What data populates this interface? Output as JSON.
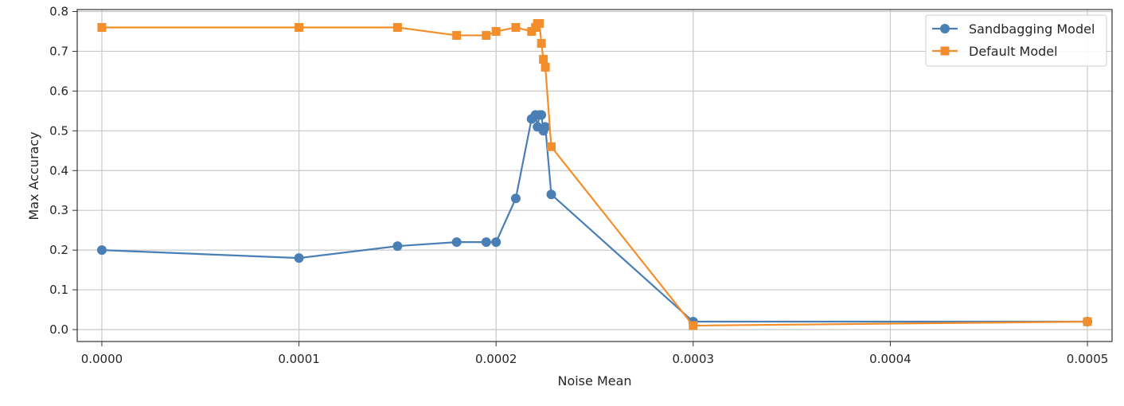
{
  "chart_data": {
    "type": "line",
    "title": "",
    "xlabel": "Noise Mean",
    "ylabel": "Max Accuracy",
    "xlim": [
      -1.25e-05,
      0.0005125
    ],
    "ylim": [
      -0.03,
      0.805
    ],
    "x_ticks": [
      0.0,
      0.0001,
      0.0002,
      0.0003,
      0.0004,
      0.0005
    ],
    "x_tick_labels": [
      "0.0000",
      "0.0001",
      "0.0002",
      "0.0003",
      "0.0004",
      "0.0005"
    ],
    "y_ticks": [
      0.0,
      0.1,
      0.2,
      0.3,
      0.4,
      0.5,
      0.6,
      0.7,
      0.8
    ],
    "y_tick_labels": [
      "0.0",
      "0.1",
      "0.2",
      "0.3",
      "0.4",
      "0.5",
      "0.6",
      "0.7",
      "0.8"
    ],
    "grid": true,
    "legend_position": "top-right",
    "series": [
      {
        "name": "Sandbagging Model",
        "color": "#4a7fb5",
        "marker": "circle",
        "x": [
          0.0,
          0.0001,
          0.00015,
          0.00018,
          0.000195,
          0.0002,
          0.00021,
          0.000218,
          0.00022,
          0.000221,
          0.000222,
          0.000223,
          0.000224,
          0.000225,
          0.000228,
          0.0003,
          0.0005
        ],
        "y": [
          0.2,
          0.18,
          0.21,
          0.22,
          0.22,
          0.22,
          0.33,
          0.53,
          0.54,
          0.51,
          0.54,
          0.54,
          0.5,
          0.51,
          0.34,
          0.02,
          0.02
        ]
      },
      {
        "name": "Default Model",
        "color": "#f28e2b",
        "marker": "square",
        "x": [
          0.0,
          0.0001,
          0.00015,
          0.00018,
          0.000195,
          0.0002,
          0.00021,
          0.000218,
          0.00022,
          0.000221,
          0.000222,
          0.000223,
          0.000224,
          0.000225,
          0.000228,
          0.0003,
          0.0005
        ],
        "y": [
          0.76,
          0.76,
          0.76,
          0.74,
          0.74,
          0.75,
          0.76,
          0.75,
          0.76,
          0.77,
          0.77,
          0.72,
          0.68,
          0.66,
          0.46,
          0.01,
          0.02
        ]
      }
    ]
  }
}
